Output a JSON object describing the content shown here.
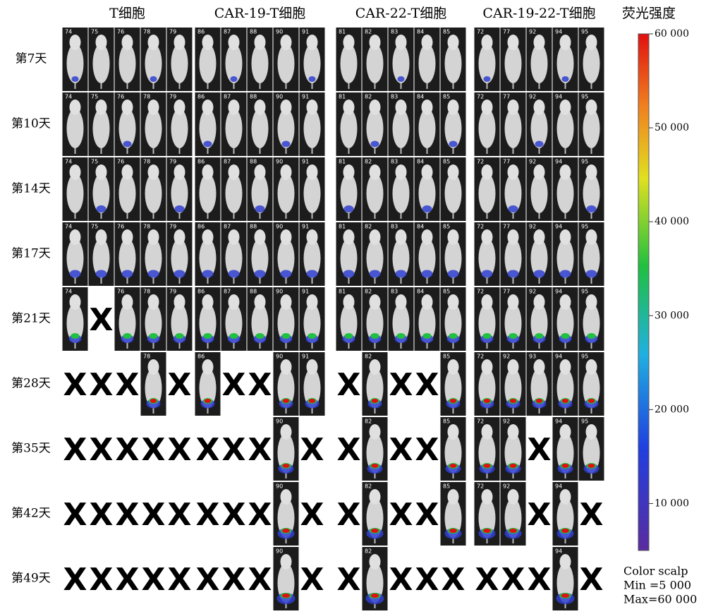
{
  "groups": [
    "T细胞",
    "CAR-19-T细胞",
    "CAR-22-T细胞",
    "CAR-19-22-T细胞"
  ],
  "rows": [
    {
      "label": "第7天",
      "cells": [
        "74",
        "75",
        "76",
        "78",
        "79",
        "86",
        "87",
        "88",
        "90",
        "91",
        "81",
        "82",
        "83",
        "84",
        "85",
        "72",
        "77",
        "92",
        "94",
        "95"
      ]
    },
    {
      "label": "第10天",
      "cells": [
        "74",
        "75",
        "76",
        "78",
        "79",
        "86",
        "87",
        "88",
        "90",
        "91",
        "81",
        "82",
        "83",
        "84",
        "85",
        "72",
        "77",
        "92",
        "94",
        "95"
      ]
    },
    {
      "label": "第14天",
      "cells": [
        "74",
        "75",
        "76",
        "78",
        "79",
        "86",
        "87",
        "88",
        "90",
        "91",
        "81",
        "82",
        "83",
        "84",
        "85",
        "72",
        "77",
        "92",
        "94",
        "95"
      ]
    },
    {
      "label": "第17天",
      "cells": [
        "74",
        "75",
        "76",
        "78",
        "79",
        "86",
        "87",
        "88",
        "90",
        "91",
        "81",
        "82",
        "83",
        "84",
        "85",
        "72",
        "77",
        "92",
        "94",
        "95"
      ]
    },
    {
      "label": "第21天",
      "cells": [
        "74",
        "X",
        "76",
        "78",
        "79",
        "86",
        "87",
        "88",
        "90",
        "91",
        "81",
        "82",
        "83",
        "84",
        "85",
        "72",
        "77",
        "92",
        "94",
        "95"
      ]
    },
    {
      "label": "第28天",
      "cells": [
        "X",
        "X",
        "X",
        "78",
        "X",
        "86",
        "X",
        "X",
        "90",
        "91",
        "X",
        "82",
        "X",
        "X",
        "85",
        "72",
        "92",
        "93",
        "94",
        "95"
      ]
    },
    {
      "label": "第35天",
      "cells": [
        "X",
        "X",
        "X",
        "X",
        "X",
        "X",
        "X",
        "X",
        "90",
        "X",
        "X",
        "82",
        "X",
        "X",
        "85",
        "72",
        "92",
        "X",
        "94",
        "95"
      ]
    },
    {
      "label": "第42天",
      "cells": [
        "X",
        "X",
        "X",
        "X",
        "X",
        "X",
        "X",
        "X",
        "90",
        "X",
        "X",
        "82",
        "X",
        "X",
        "85",
        "72",
        "92",
        "X",
        "94",
        "X"
      ]
    },
    {
      "label": "第49天",
      "cells": [
        "X",
        "X",
        "X",
        "X",
        "X",
        "X",
        "X",
        "X",
        "90",
        "X",
        "X",
        "82",
        "X",
        "X",
        "X",
        "X",
        "X",
        "X",
        "94",
        "X"
      ]
    }
  ],
  "colorbar": {
    "title": "荧光强度",
    "lim": [
      5000,
      60000
    ],
    "ticks": [
      {
        "value": 60000,
        "label": "60 000"
      },
      {
        "value": 50000,
        "label": "50 000"
      },
      {
        "value": 40000,
        "label": "40 000"
      },
      {
        "value": 30000,
        "label": "30 000"
      },
      {
        "value": 20000,
        "label": "20 000"
      },
      {
        "value": 10000,
        "label": "10 000"
      }
    ]
  },
  "note": [
    "Color scalp",
    "Min =5 000",
    "Max=60 000"
  ]
}
